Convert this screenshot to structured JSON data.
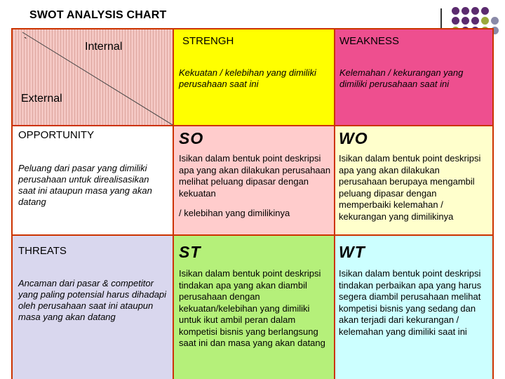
{
  "title": "SWOT ANALYSIS CHART",
  "corner": {
    "tick": "`",
    "internal": "Internal",
    "external": "External"
  },
  "strength": {
    "header": "STRENGH",
    "desc": "Kekuatan / kelebihan yang dimiliki perusahaan saat ini"
  },
  "weakness": {
    "header": "WEAKNESS",
    "desc": "Kelemahan / kekurangan yang dimiliki perusahaan saat ini"
  },
  "opportunity": {
    "header": "OPPORTUNITY",
    "desc": "Peluang dari pasar yang dimiliki perusahaan untuk direalisasikan saat ini ataupun masa yang akan datang"
  },
  "threats": {
    "header": "THREATS",
    "desc": "Ancaman dari pasar & competitor yang paling potensial harus dihadapi oleh perusahaan saat ini ataupun masa yang akan datang"
  },
  "so": {
    "label": "SO",
    "text": "Isikan dalam bentuk point deskripsi apa yang akan dilakukan perusahaan melihat peluang dipasar dengan kekuatan",
    "text2": "/ kelebihan yang dimilikinya"
  },
  "wo": {
    "label": "WO",
    "text": "Isikan dalam bentuk point deskripsi apa yang akan dilakukan perusahaan berupaya mengambil peluang dipasar dengan memperbaiki kelemahan / kekurangan yang dimilikinya"
  },
  "st": {
    "label": "ST",
    "text": "Isikan dalam bentuk point deskripsi tindakan apa yang akan diambil perusahaan dengan kekuatan/kelebihan yang dimiliki untuk ikut ambil peran dalam kompetisi bisnis yang berlangsung saat ini dan masa yang akan datang"
  },
  "wt": {
    "label": "WT",
    "text": "Isikan dalam bentuk point deskripsi tindakan perbaikan apa yang harus segera diambil perusahaan melihat kompetisi bisnis yang sedang dan akan terjadi dari kekurangan / kelemahan yang dimiliki saat ini"
  },
  "colors": {
    "grid_border": "#cc3300",
    "strength_bg": "#ffff00",
    "weakness_bg": "#ee4f8f",
    "so_bg": "#ffcccc",
    "wo_bg": "#ffffcc",
    "threats_bg": "#d9d7ee",
    "st_bg": "#b5f07a",
    "wt_bg": "#ccffff",
    "dot_purple": "#5b2b6e",
    "dot_green": "#9aaa3a",
    "dot_gray": "#8a8aa8"
  }
}
